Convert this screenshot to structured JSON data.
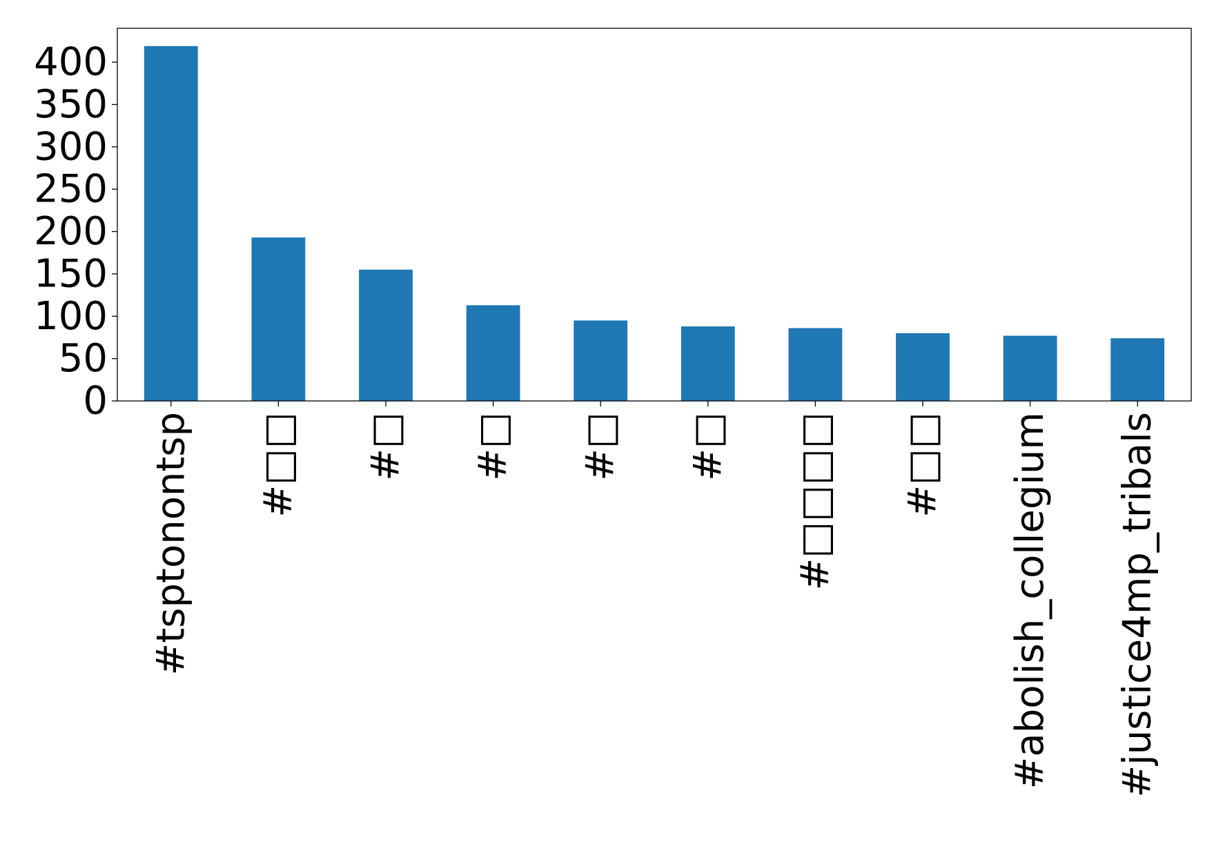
{
  "chart_data": {
    "type": "bar",
    "categories": [
      "#tsptonontsp",
      "#□□",
      "#□",
      "#□",
      "#□",
      "#□",
      "#□□□□",
      "#□□",
      "#abolish_collegium",
      "#justice4mp_tribals"
    ],
    "values": [
      419,
      193,
      155,
      113,
      95,
      88,
      86,
      80,
      77,
      74
    ],
    "title": "",
    "xlabel": "",
    "ylabel": "",
    "ylim": [
      0,
      440
    ],
    "yticks": [
      0,
      50,
      100,
      150,
      200,
      250,
      300,
      350,
      400
    ],
    "bar_color": "#1f77b4",
    "grid": false,
    "legend": "none"
  }
}
